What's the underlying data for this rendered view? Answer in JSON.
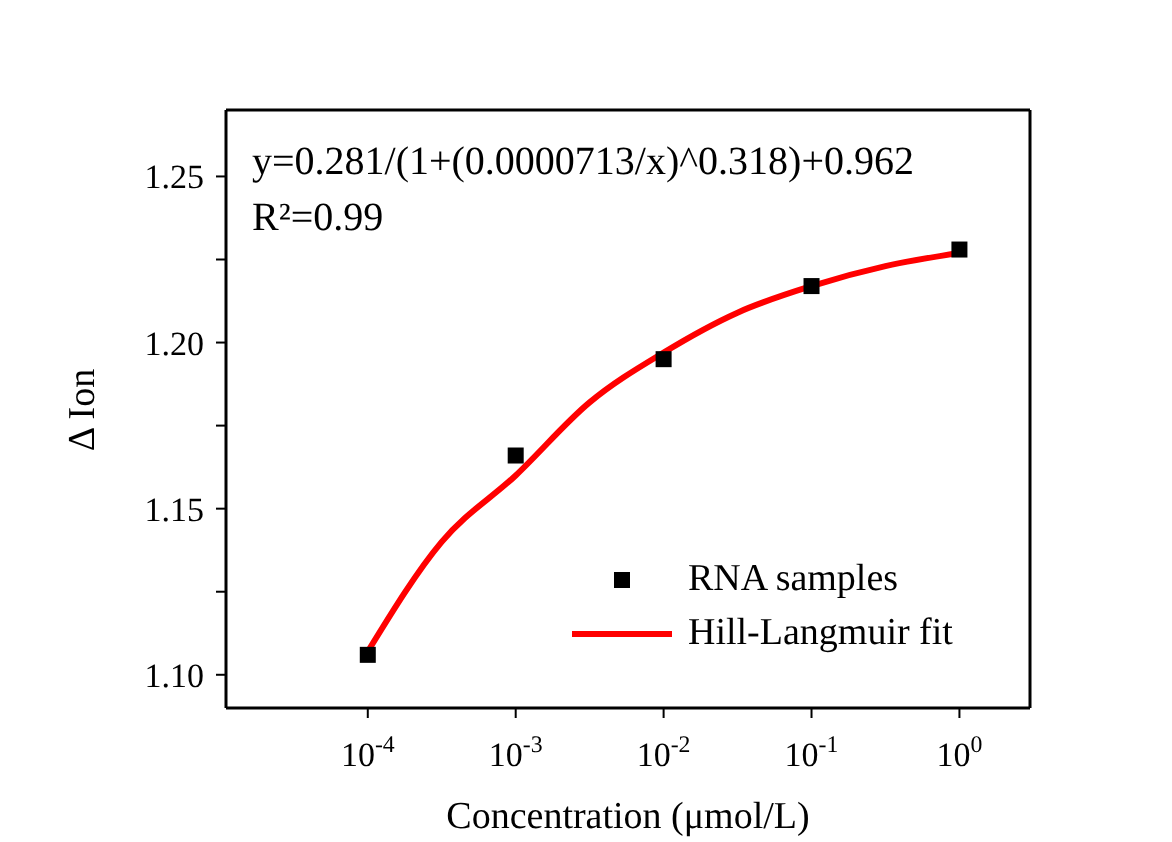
{
  "chart_data": {
    "type": "scatter",
    "xlabel": "Concentration (μmol/L)",
    "ylabel": "Δ Ion",
    "log": "x",
    "xlim": [
      1.1e-05,
      3
    ],
    "xticks": [
      {
        "value": 0.0001,
        "label": "10$^{-4}$"
      },
      {
        "value": 0.001,
        "label": "10$^{-3}$"
      },
      {
        "value": 0.01,
        "label": "10$^{-2}$"
      },
      {
        "value": 0.1,
        "label": "10$^{-1}$"
      },
      {
        "value": 1,
        "label": "10$^{0}$"
      }
    ],
    "ylim": [
      1.09,
      1.27
    ],
    "yticks": [
      {
        "value": 1.1,
        "label": "1.10"
      },
      {
        "value": 1.125,
        "label": null
      },
      1.15,
      {
        "value": 1.175,
        "label": null
      },
      {
        "value": 1.2,
        "label": "1.20"
      },
      {
        "value": 1.225,
        "label": null
      },
      1.25
    ],
    "grid": false,
    "legend": "bottom right",
    "annotations": [
      "y=0.281/(1+(0.0000713/x)^0.318)+0.962",
      "R²=0.99"
    ],
    "x": [
      0.0001,
      0.001,
      0.01,
      0.1,
      1
    ],
    "series": [
      {
        "name": "RNA samples",
        "type": "scatter",
        "color": "#000000",
        "marker": "square",
        "values": [
          1.106,
          1.166,
          1.195,
          1.217,
          1.228
        ]
      },
      {
        "name": "Hill-Langmuir fit",
        "type": "line",
        "color": "#ff0000",
        "marker": "none",
        "line_style": "solid",
        "x": [
          0.0001,
          0.000316,
          0.001,
          0.00316,
          0.01,
          0.0316,
          0.1,
          0.316,
          1
        ],
        "values": [
          1.107,
          1.14,
          1.16,
          1.182,
          1.197,
          1.209,
          1.217,
          1.223,
          1.227
        ]
      }
    ]
  }
}
